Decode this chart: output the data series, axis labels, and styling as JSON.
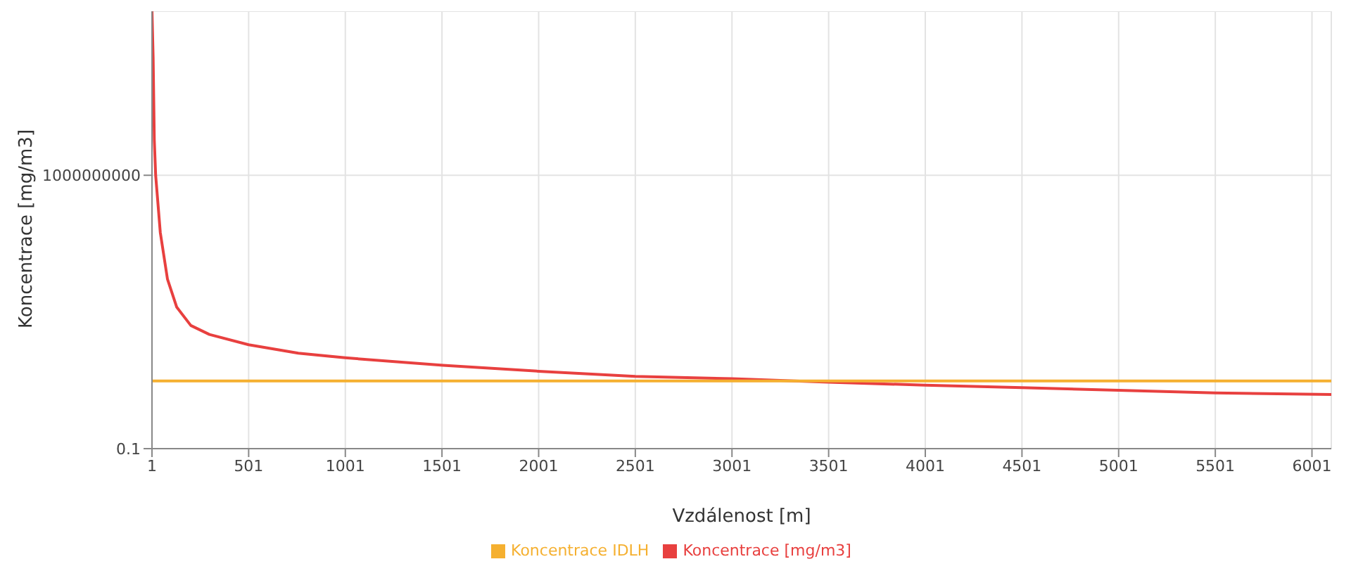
{
  "chart_data": {
    "type": "line",
    "xlabel": "Vzdálenost [m]",
    "ylabel": "Koncentrace [mg/m3]",
    "xlim": [
      1,
      6101
    ],
    "xticks": [
      1,
      501,
      1001,
      1501,
      2001,
      2501,
      3001,
      3501,
      4001,
      4501,
      5001,
      5501,
      6001
    ],
    "ylim": [
      0.1,
      1000000000000000
    ],
    "yticks": [
      0.1,
      1000000000
    ],
    "log": "y",
    "grid": true,
    "legend": "bottom",
    "marker": "none",
    "line_style": "solid",
    "series": [
      {
        "name": "Koncentrace [mg/m3]",
        "color": "#e8403f",
        "x": [
          1,
          7,
          13,
          20,
          44,
          81,
          129,
          202,
          298,
          501,
          758,
          1001,
          1507,
          2001,
          2501,
          3001,
          3501,
          4001,
          4501,
          5001,
          5501,
          6101
        ],
        "values": [
          1000000000000000,
          20000000000000,
          19000000000,
          1000000000,
          8000000,
          160000,
          15000,
          3200,
          1500,
          630,
          310,
          210,
          112,
          68,
          44,
          36,
          27,
          21,
          17,
          13.6,
          11,
          9.5
        ]
      },
      {
        "name": "Koncentrace IDLH",
        "color": "#f5b030",
        "x": [
          1,
          6101
        ],
        "values": [
          30,
          30
        ]
      }
    ]
  }
}
